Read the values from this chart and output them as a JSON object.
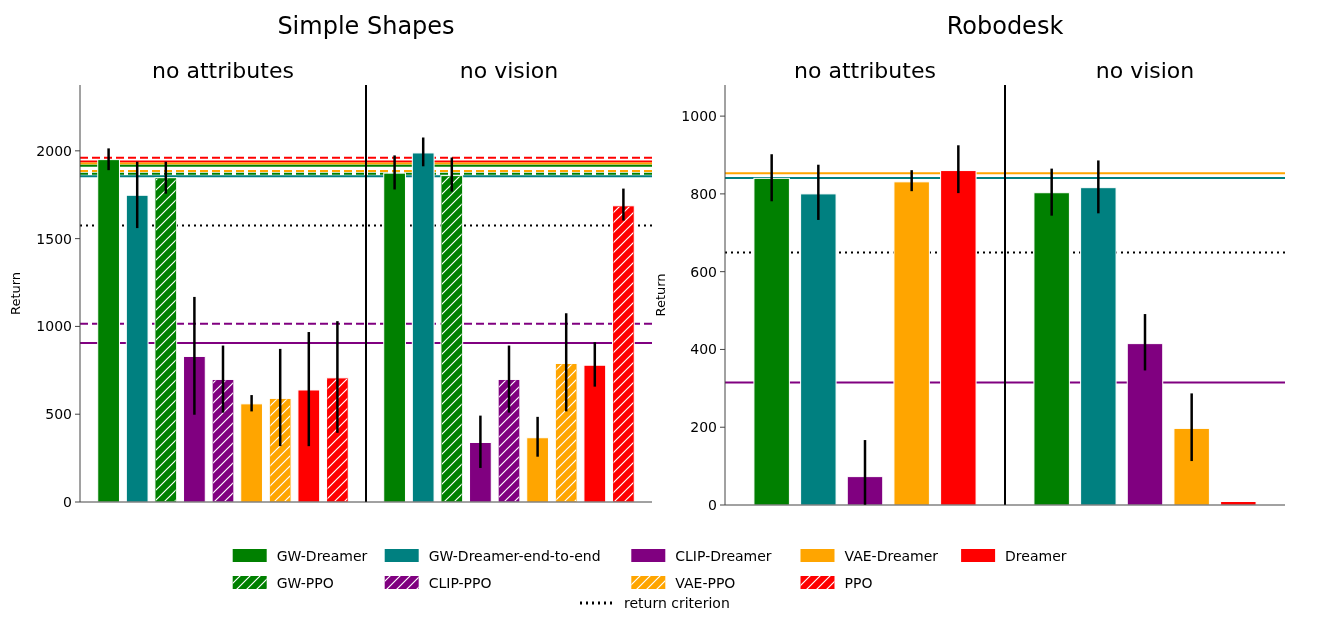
{
  "chart_data": [
    {
      "type": "bar",
      "title": "Simple Shapes",
      "ylabel": "Return",
      "categories": [
        "no attributes",
        "no vision"
      ],
      "ylim": [
        0,
        2375
      ],
      "yticks": [
        0,
        500,
        1000,
        1500,
        2000
      ],
      "grid": false,
      "legend": "bottom",
      "series": [
        {
          "name": "GW-Dreamer",
          "color": "#008000",
          "values": [
            1950,
            1873
          ],
          "errors": [
            [
              1890,
              2014
            ],
            [
              1780,
              1974
            ]
          ]
        },
        {
          "name": "GW-Dreamer-end-to-end",
          "color": "#008080",
          "values": [
            1747,
            1988
          ],
          "errors": [
            [
              1560,
              1938
            ],
            [
              1912,
              2076
            ]
          ]
        },
        {
          "name": "GW-PPO",
          "color": "#008000",
          "line_style": "dashed",
          "values": [
            1847,
            1859
          ],
          "errors": [
            [
              1756,
              1938
            ],
            [
              1768,
              1962
            ]
          ]
        },
        {
          "name": "CLIP-Dreamer",
          "color": "#800080",
          "values": [
            829,
            339
          ],
          "errors": [
            [
              497,
              1168
            ],
            [
              194,
              492
            ]
          ]
        },
        {
          "name": "CLIP-PPO",
          "color": "#800080",
          "line_style": "dashed",
          "values": [
            698,
            698
          ],
          "errors": [
            [
              509,
              891
            ],
            [
              509,
              891
            ]
          ]
        },
        {
          "name": "VAE-Dreamer",
          "color": "#ffa500",
          "values": [
            559,
            366
          ],
          "errors": [
            [
              516,
              609
            ],
            [
              258,
              485
            ]
          ]
        },
        {
          "name": "VAE-PPO",
          "color": "#ffa500",
          "line_style": "dashed",
          "values": [
            590,
            789
          ],
          "errors": [
            [
              318,
              872
            ],
            [
              516,
              1075
            ]
          ]
        },
        {
          "name": "Dreamer",
          "color": "#ff0000",
          "values": [
            638,
            779
          ],
          "errors": [
            [
              318,
              968
            ],
            [
              657,
              910
            ]
          ]
        },
        {
          "name": "PPO",
          "color": "#ff0000",
          "line_style": "dashed",
          "values": [
            707,
            1687
          ],
          "errors": [
            [
              394,
              1030
            ],
            [
              1603,
              1785
            ]
          ]
        }
      ],
      "ref_lines": [
        {
          "axis": "y",
          "value": 1960,
          "color": "#ff0000",
          "line_style": "dashed"
        },
        {
          "axis": "y",
          "value": 1940,
          "color": "#ff0000",
          "line_style": "solid"
        },
        {
          "axis": "y",
          "value": 1928,
          "color": "#ffa500",
          "line_style": "solid"
        },
        {
          "axis": "y",
          "value": 1915,
          "color": "#008000",
          "line_style": "solid"
        },
        {
          "axis": "y",
          "value": 1885,
          "color": "#ffa500",
          "line_style": "dashed"
        },
        {
          "axis": "y",
          "value": 1870,
          "color": "#008000",
          "line_style": "dashed"
        },
        {
          "axis": "y",
          "value": 1855,
          "color": "#008080",
          "line_style": "solid"
        },
        {
          "axis": "y",
          "value": 1015,
          "color": "#800080",
          "line_style": "dashed"
        },
        {
          "axis": "y",
          "value": 905,
          "color": "#800080",
          "line_style": "solid"
        },
        {
          "axis": "y",
          "value": 1575,
          "color": "#000000",
          "line_style": "dotted",
          "label": "return criterion"
        }
      ]
    },
    {
      "type": "bar",
      "title": "Robodesk",
      "ylabel": "Return",
      "categories": [
        "no attributes",
        "no vision"
      ],
      "ylim": [
        0,
        1080
      ],
      "yticks": [
        0,
        200,
        400,
        600,
        800,
        1000
      ],
      "grid": false,
      "series": [
        {
          "color": "#008000",
          "values": [
            840,
            803
          ],
          "errors": [
            [
              781,
              902
            ],
            [
              744,
              865
            ]
          ]
        },
        {
          "color": "#008080",
          "values": [
            800,
            816
          ],
          "errors": [
            [
              733,
              875
            ],
            [
              750,
              886
            ]
          ]
        },
        {
          "color": "#800080",
          "values": [
            73,
            415
          ],
          "errors": [
            [
              0,
              167
            ],
            [
              346,
              491
            ]
          ]
        },
        {
          "color": "#ffa500",
          "values": [
            831,
            197
          ],
          "errors": [
            [
              807,
              861
            ],
            [
              113,
              287
            ]
          ]
        },
        {
          "color": "#ff0000",
          "values": [
            860,
            9
          ],
          "errors": [
            [
              802,
              925
            ],
            null
          ]
        }
      ],
      "ref_lines": [
        {
          "axis": "y",
          "value": 853,
          "color": "#ffa500",
          "line_style": "solid"
        },
        {
          "axis": "y",
          "value": 841,
          "color": "#008080",
          "line_style": "solid"
        },
        {
          "axis": "y",
          "value": 315,
          "color": "#800080",
          "line_style": "solid"
        },
        {
          "axis": "y",
          "value": 649,
          "color": "#000000",
          "line_style": "dotted"
        }
      ]
    }
  ]
}
